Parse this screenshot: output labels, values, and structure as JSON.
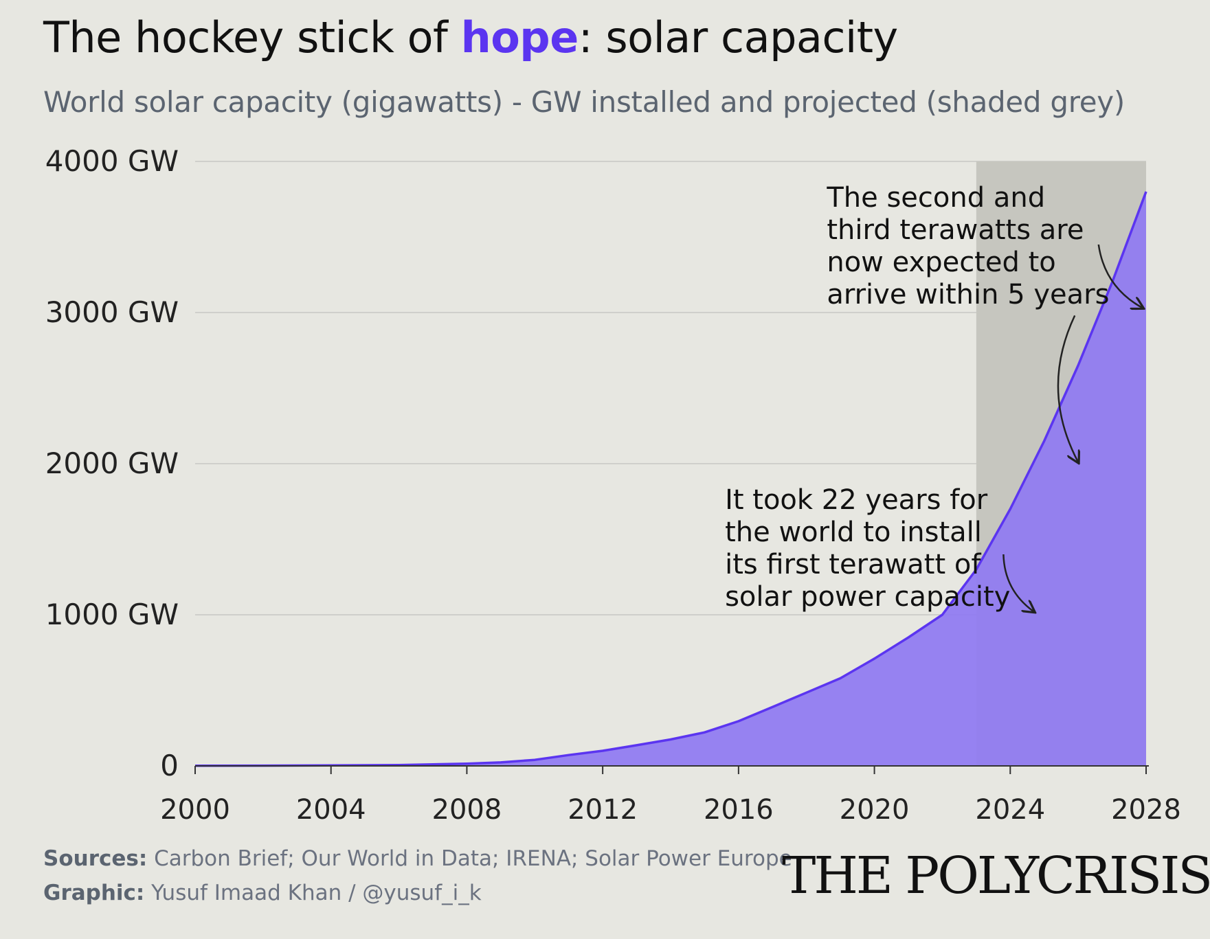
{
  "header": {
    "title_before": "The hockey stick of ",
    "title_highlight": "hope",
    "title_after": ": solar capacity",
    "subtitle": "World solar capacity (gigawatts) - GW installed and projected (shaded grey)"
  },
  "footer": {
    "sources_label": "Sources:",
    "sources_text": " Carbon Brief; Our World in Data; IRENA; Solar Power Europe",
    "graphic_label": "Graphic:",
    "graphic_text": " Yusuf Imaad Khan / @yusuf_i_k"
  },
  "brand": "THE POLYCRISIS",
  "colors": {
    "background": "#e7e7e1",
    "accent": "#5b35f0",
    "area_fill": "#8f7af2",
    "projection_shade": "#c6c6bf",
    "gridline": "#cfcfcb"
  },
  "chart_data": {
    "type": "area",
    "title": "The hockey stick of hope: solar capacity",
    "subtitle": "World solar capacity (gigawatts) - GW installed and projected (shaded grey)",
    "xlim": [
      2000,
      2028
    ],
    "ylim": [
      0,
      4000
    ],
    "grid": true,
    "y_ticks": [
      {
        "value": 0,
        "label": "0"
      },
      {
        "value": 1000,
        "label": "1000 GW"
      },
      {
        "value": 2000,
        "label": "2000 GW"
      },
      {
        "value": 3000,
        "label": "3000 GW"
      },
      {
        "value": 4000,
        "label": "4000 GW"
      }
    ],
    "x_ticks": [
      {
        "value": 2000,
        "label": "2000"
      },
      {
        "value": 2004,
        "label": "2004"
      },
      {
        "value": 2008,
        "label": "2008"
      },
      {
        "value": 2012,
        "label": "2012"
      },
      {
        "value": 2016,
        "label": "2016"
      },
      {
        "value": 2020,
        "label": "2020"
      },
      {
        "value": 2024,
        "label": "2024"
      },
      {
        "value": 2028,
        "label": "2028"
      }
    ],
    "projection_range": [
      2023,
      2028
    ],
    "series": [
      {
        "x": [
          2000,
          2002,
          2004,
          2006,
          2008,
          2009,
          2010,
          2011,
          2012,
          2013,
          2014,
          2015,
          2016,
          2017,
          2018,
          2019,
          2020,
          2021,
          2022,
          2022.5,
          2023,
          2024,
          2025,
          2026,
          2027,
          2028
        ],
        "values": [
          1,
          2,
          3,
          6,
          15,
          23,
          40,
          72,
          100,
          137,
          175,
          222,
          296,
          390,
          485,
          580,
          710,
          850,
          1000,
          1150,
          1300,
          1700,
          2150,
          2650,
          3200,
          3800
        ]
      }
    ],
    "annotations": [
      {
        "lines": [
          "The second and",
          "third terawatts are",
          "now expected to",
          "arrive within 5 years"
        ],
        "x": 2018.6,
        "y": 3700,
        "arrows": [
          {
            "from": [
              2026.6,
              3450
            ],
            "to": [
              2027.9,
              3030
            ]
          },
          {
            "from": [
              2025.9,
              2980
            ],
            "to": [
              2026.0,
              2010
            ]
          }
        ]
      },
      {
        "lines": [
          "It took 22 years for",
          "the world to install",
          "its first terawatt of",
          "solar power capacity"
        ],
        "x": 2015.6,
        "y": 1700,
        "arrows": [
          {
            "from": [
              2023.8,
              1400
            ],
            "to": [
              2024.7,
              1020
            ]
          }
        ]
      }
    ]
  }
}
